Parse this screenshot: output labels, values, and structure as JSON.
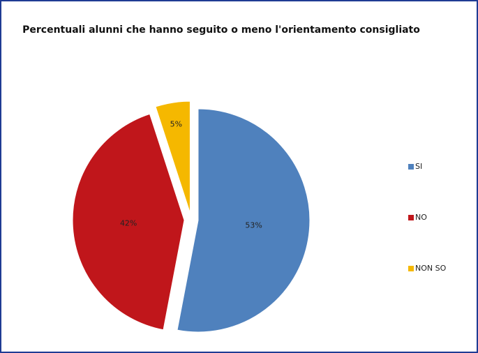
{
  "chart_data": {
    "type": "pie",
    "title": "Percentuali alunni che hanno seguito o meno l'orientamento consigliato",
    "categories": [
      "SI",
      "NO",
      "NON SO"
    ],
    "values": [
      53,
      42,
      5
    ],
    "value_labels": [
      "53%",
      "42%",
      "5%"
    ],
    "colors": [
      "#4f81bd",
      "#c0161b",
      "#f5b800"
    ],
    "legend": "right"
  }
}
